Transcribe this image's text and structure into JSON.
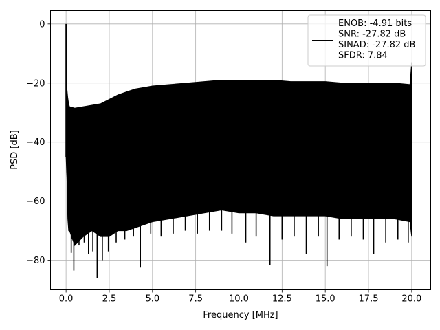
{
  "chart_data": {
    "type": "line",
    "title": "",
    "xlabel": "Frequency [MHz]",
    "ylabel": "PSD [dB]",
    "xlim": [
      -0.9,
      21.1
    ],
    "ylim": [
      -90,
      4.5
    ],
    "xticks": [
      0.0,
      2.5,
      5.0,
      7.5,
      10.0,
      12.5,
      15.0,
      17.5,
      20.0
    ],
    "xtick_labels": [
      "0.0",
      "2.5",
      "5.0",
      "7.5",
      "10.0",
      "12.5",
      "15.0",
      "17.5",
      "20.0"
    ],
    "yticks": [
      0,
      -20,
      -40,
      -60,
      -80
    ],
    "ytick_labels": [
      "0",
      "−20",
      "−40",
      "−60",
      "−80"
    ],
    "grid": true,
    "legend_position": "top-right",
    "line_color": "#000000",
    "series": [
      {
        "name": "ENOB: -4.91 bits\nSNR: -27.82 dB\nSINAD: -27.82 dB\nSFDR: 7.84",
        "x": [
          0.0,
          0.02,
          0.05,
          0.1,
          0.15,
          0.2,
          0.5,
          1.0,
          1.5,
          2.0,
          2.5,
          3.0,
          3.5,
          4.0,
          4.5,
          5.0,
          6.0,
          7.0,
          8.0,
          9.0,
          10.0,
          11.0,
          12.0,
          13.0,
          14.0,
          15.0,
          16.0,
          17.0,
          18.0,
          19.0,
          19.9,
          20.0
        ],
        "upper": [
          0,
          -14,
          -22,
          -25,
          -27,
          -28,
          -28.5,
          -28,
          -27.5,
          -27,
          -25.5,
          -24,
          -23,
          -22,
          -21.5,
          -21,
          -20.5,
          -20,
          -19.5,
          -19,
          -19,
          -19,
          -19,
          -19.5,
          -19.5,
          -19.5,
          -20,
          -20,
          -20,
          -20,
          -20.5,
          -13
        ],
        "lower": [
          -45,
          -48,
          -52,
          -66,
          -70,
          -70,
          -75,
          -72,
          -70,
          -72,
          -72,
          -70,
          -70,
          -69,
          -68,
          -67,
          -66,
          -65,
          -64,
          -63,
          -64,
          -64,
          -65,
          -65,
          -65,
          -65,
          -66,
          -66,
          -66,
          -66,
          -67,
          -72
        ],
        "dips": [
          {
            "x": 0.3,
            "y": -77.5
          },
          {
            "x": 0.45,
            "y": -83.5
          },
          {
            "x": 0.75,
            "y": -75
          },
          {
            "x": 1.05,
            "y": -74
          },
          {
            "x": 1.3,
            "y": -78
          },
          {
            "x": 1.55,
            "y": -77
          },
          {
            "x": 1.8,
            "y": -86
          },
          {
            "x": 2.1,
            "y": -80
          },
          {
            "x": 2.45,
            "y": -77
          },
          {
            "x": 2.9,
            "y": -74
          },
          {
            "x": 3.4,
            "y": -73
          },
          {
            "x": 3.9,
            "y": -72
          },
          {
            "x": 4.3,
            "y": -82.5
          },
          {
            "x": 4.9,
            "y": -71
          },
          {
            "x": 5.5,
            "y": -72
          },
          {
            "x": 6.2,
            "y": -71
          },
          {
            "x": 6.9,
            "y": -70
          },
          {
            "x": 7.6,
            "y": -71
          },
          {
            "x": 8.3,
            "y": -70
          },
          {
            "x": 9.0,
            "y": -70
          },
          {
            "x": 9.6,
            "y": -71
          },
          {
            "x": 10.4,
            "y": -74
          },
          {
            "x": 11.0,
            "y": -72
          },
          {
            "x": 11.8,
            "y": -81.5
          },
          {
            "x": 12.5,
            "y": -73
          },
          {
            "x": 13.2,
            "y": -72
          },
          {
            "x": 13.9,
            "y": -78
          },
          {
            "x": 14.6,
            "y": -72
          },
          {
            "x": 15.1,
            "y": -82
          },
          {
            "x": 15.8,
            "y": -73
          },
          {
            "x": 16.5,
            "y": -72
          },
          {
            "x": 17.2,
            "y": -73
          },
          {
            "x": 17.8,
            "y": -78
          },
          {
            "x": 18.5,
            "y": -74
          },
          {
            "x": 19.2,
            "y": -73
          },
          {
            "x": 19.8,
            "y": -74
          }
        ],
        "peaks": [
          {
            "x": 0.0,
            "y": 0
          },
          {
            "x": 20.0,
            "y": -13
          }
        ]
      }
    ]
  }
}
